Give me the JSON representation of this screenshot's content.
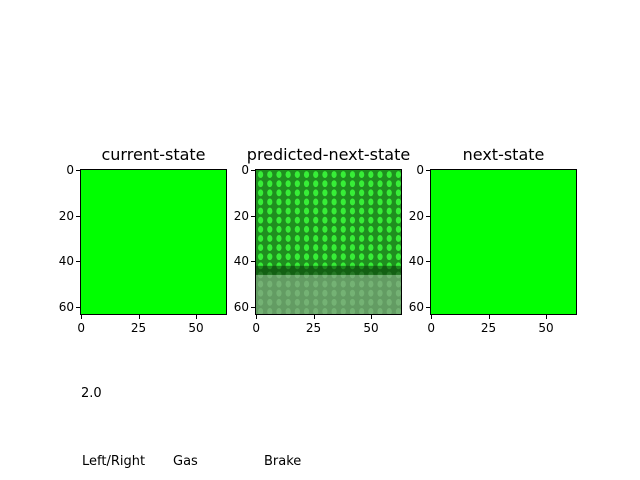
{
  "chart_data": [
    {
      "type": "image",
      "title": "current-state",
      "xticks": [
        0,
        25,
        50
      ],
      "yticks": [
        0,
        20,
        40,
        60
      ],
      "xlim": [
        -0.5,
        63.5
      ],
      "ylim": [
        63.5,
        -0.5
      ],
      "fill_color": "#00ff00"
    },
    {
      "type": "image",
      "title": "predicted-next-state",
      "xticks": [
        0,
        25,
        50
      ],
      "yticks": [
        0,
        20,
        40,
        60
      ],
      "xlim": [
        -0.5,
        63.5
      ],
      "ylim": [
        63.5,
        -0.5
      ],
      "fill_color": "#1f8f1f"
    },
    {
      "type": "image",
      "title": "next-state",
      "xticks": [
        0,
        25,
        50
      ],
      "yticks": [
        0,
        20,
        40,
        60
      ],
      "xlim": [
        -0.5,
        63.5
      ],
      "ylim": [
        63.5,
        -0.5
      ],
      "fill_color": "#00ff00"
    }
  ],
  "action_value": "2.0",
  "action_labels": [
    "Left/Right",
    "Gas",
    "Brake"
  ]
}
